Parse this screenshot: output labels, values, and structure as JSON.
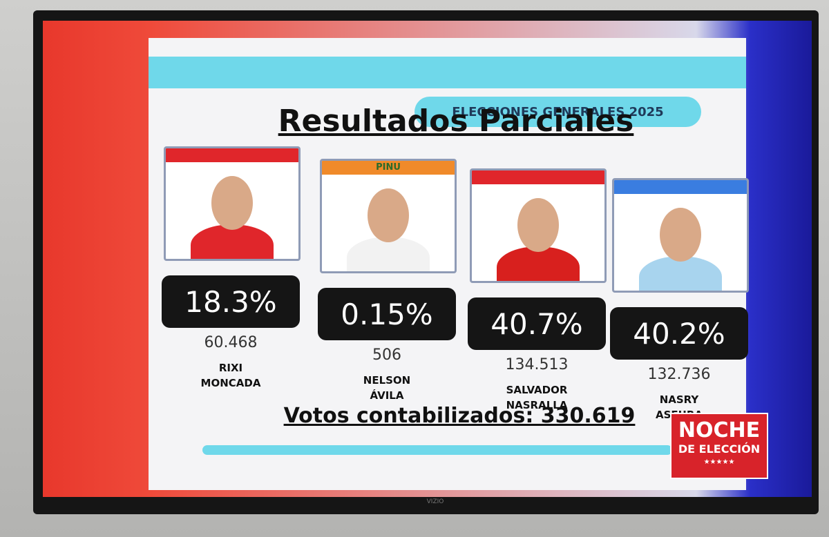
{
  "header": {
    "banner": "ELECCIONES GENERALES 2025",
    "title": "Resultados Parciales"
  },
  "candidates": [
    {
      "party": null,
      "percent": "18.3%",
      "votes": "60.468",
      "name": [
        "RIXI",
        "MONCADA"
      ]
    },
    {
      "party": "PINU",
      "percent": "0.15%",
      "votes": "506",
      "name": [
        "NELSON",
        "ÁVILA"
      ]
    },
    {
      "party": null,
      "percent": "40.7%",
      "votes": "134.513",
      "name": [
        "SALVADOR",
        "NASRALLA"
      ]
    },
    {
      "party": null,
      "percent": "40.2%",
      "votes": "132.736",
      "name": [
        "NASRY",
        "ASFURA"
      ]
    }
  ],
  "footer": {
    "total": "Votos contabilizados: 330.619"
  },
  "logo": {
    "line1": "NOCHE",
    "line2": "DE ELECCIÓN",
    "stars": "★★★★★"
  },
  "tv": {
    "brand": "VIZIO"
  }
}
